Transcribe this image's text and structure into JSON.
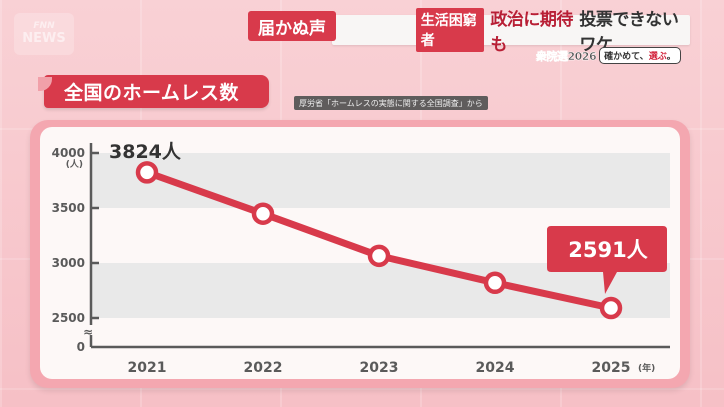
{
  "broadcast": {
    "logo_text_top": "FNN",
    "logo_text": "NEWS",
    "tag_main": "届かぬ声",
    "tag_sub": "生活困窮者",
    "headline_red": "政治に期待も",
    "headline_dark": "投票できないワケ",
    "election_label": "衆院選2026",
    "slogan_pre": "確かめて、",
    "slogan_red": "選ぶ",
    "slogan_post": "。"
  },
  "chart_header": {
    "title": "全国のホームレス数",
    "source": "厚労省「ホームレスの実態に関する全国調査」から"
  },
  "colors": {
    "accent": "#d83a4b",
    "line": "#d83a4b",
    "band": "#e9e9e9",
    "axis": "#5a5a5a",
    "background": "#f7c6cb"
  },
  "chart_data": {
    "type": "line",
    "title": "全国のホームレス数",
    "subtitle": "厚労省「ホームレスの実態に関する全国調査」から",
    "categories": [
      "2021",
      "2022",
      "2023",
      "2024",
      "2025"
    ],
    "series": [
      {
        "name": "ホームレス数",
        "values": [
          3824,
          3448,
          3065,
          2820,
          2591
        ]
      }
    ],
    "xlabel": "(年)",
    "ylabel": "(人)",
    "yticks": [
      "0",
      "2500",
      "3000",
      "3500",
      "4000"
    ],
    "ylim": [
      0,
      4000
    ],
    "axis_break": "≈",
    "grid": "alternating horizontal bands",
    "legend": "none",
    "annotations": [
      {
        "category": "2021",
        "text": "3824人",
        "style": "plain"
      },
      {
        "category": "2025",
        "text": "2591人",
        "style": "callout-red"
      }
    ]
  }
}
